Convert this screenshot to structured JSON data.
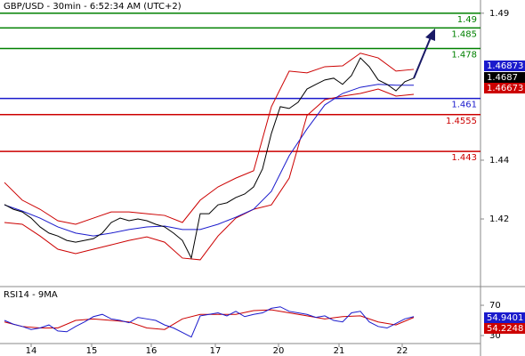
{
  "chart_data": [
    {
      "type": "line",
      "title": "GBP/USD - 30min - 6:52:34 AM (UTC+2)",
      "xlim": [
        0,
        46
      ],
      "ylim": [
        1.3976,
        1.4945
      ],
      "yticks": [
        1.49,
        1.44,
        1.42
      ],
      "series": [
        {
          "color": "#cc0000",
          "x": [
            0,
            2,
            4,
            6,
            8,
            10,
            12,
            14,
            16,
            18,
            20,
            22,
            24,
            26,
            28,
            30,
            32,
            34,
            36,
            38,
            40,
            42,
            44,
            46
          ],
          "values": [
            1.4324,
            1.4264,
            1.4233,
            1.4194,
            1.4182,
            1.4203,
            1.4224,
            1.4224,
            1.4218,
            1.4212,
            1.4188,
            1.4264,
            1.4309,
            1.4339,
            1.4364,
            1.4582,
            1.4703,
            1.4697,
            1.4718,
            1.4721,
            1.4764,
            1.4748,
            1.4703,
            1.4709
          ]
        },
        {
          "color": "#cc0000",
          "x": [
            0,
            2,
            4,
            6,
            8,
            10,
            12,
            14,
            16,
            18,
            20,
            22,
            24,
            26,
            28,
            30,
            32,
            34,
            36,
            38,
            40,
            42,
            44,
            46
          ],
          "values": [
            1.4188,
            1.4182,
            1.4142,
            1.4097,
            1.4082,
            1.4097,
            1.4112,
            1.4127,
            1.4139,
            1.4121,
            1.4067,
            1.4061,
            1.4142,
            1.4203,
            1.4233,
            1.4248,
            1.4339,
            1.4552,
            1.4606,
            1.4618,
            1.4627,
            1.4642,
            1.4618,
            1.4624
          ]
        },
        {
          "color": "#1a1acc",
          "x": [
            0,
            2,
            4,
            6,
            8,
            10,
            12,
            14,
            16,
            18,
            20,
            22,
            24,
            26,
            28,
            30,
            32,
            34,
            36,
            38,
            40,
            42,
            44,
            46
          ],
          "values": [
            1.4248,
            1.4227,
            1.4203,
            1.4173,
            1.4152,
            1.4142,
            1.4152,
            1.4164,
            1.4173,
            1.4176,
            1.4164,
            1.4164,
            1.4182,
            1.4206,
            1.4233,
            1.4294,
            1.4415,
            1.4506,
            1.4588,
            1.4627,
            1.4648,
            1.4658,
            1.4655,
            1.4655
          ]
        },
        {
          "color": "#000000",
          "x": [
            0,
            1,
            2,
            3,
            4,
            5,
            6,
            7,
            8,
            9,
            10,
            11,
            12,
            13,
            14,
            15,
            16,
            17,
            18,
            19,
            20,
            21,
            22,
            23,
            24,
            25,
            26,
            27,
            28,
            29,
            30,
            31,
            32,
            33,
            34,
            35,
            36,
            37,
            38,
            39,
            40,
            41,
            42,
            43,
            44,
            45,
            46
          ],
          "values": [
            1.4249,
            1.4233,
            1.4224,
            1.4203,
            1.4173,
            1.4152,
            1.4142,
            1.4127,
            1.4121,
            1.4127,
            1.4133,
            1.4152,
            1.4188,
            1.4203,
            1.4194,
            1.42,
            1.4194,
            1.4182,
            1.4173,
            1.4152,
            1.4127,
            1.4067,
            1.4218,
            1.4218,
            1.4248,
            1.4255,
            1.4273,
            1.4285,
            1.4309,
            1.437,
            1.4491,
            1.4582,
            1.4576,
            1.4597,
            1.4642,
            1.4658,
            1.4673,
            1.4679,
            1.4658,
            1.4688,
            1.4748,
            1.4718,
            1.4673,
            1.4658,
            1.4636,
            1.4667,
            1.4679
          ]
        }
      ],
      "levels": [
        {
          "value": 1.49,
          "color": "#008000"
        },
        {
          "value": 1.485,
          "color": "#008000"
        },
        {
          "value": 1.478,
          "color": "#008000"
        },
        {
          "value": 1.461,
          "color": "#1a1acc"
        },
        {
          "value": 1.4555,
          "color": "#cc0000"
        },
        {
          "value": 1.443,
          "color": "#cc0000"
        }
      ],
      "price_tags": [
        {
          "value": 1.46873,
          "color": "#1a1acc"
        },
        {
          "value": 1.4687,
          "color": "#000000"
        },
        {
          "value": 1.46673,
          "color": "#cc0000"
        }
      ]
    },
    {
      "type": "line",
      "title": "RSI14 - 9MA",
      "xlim": [
        0,
        46
      ],
      "ylim": [
        20.6,
        91.2
      ],
      "yticks": [
        70,
        30
      ],
      "xticks": [
        {
          "value": 3,
          "label": "14"
        },
        {
          "value": 9.8,
          "label": "15"
        },
        {
          "value": 16.5,
          "label": "16"
        },
        {
          "value": 23.7,
          "label": "17"
        },
        {
          "value": 30.8,
          "label": "20"
        },
        {
          "value": 37.6,
          "label": "21"
        },
        {
          "value": 44.7,
          "label": "22"
        }
      ],
      "series": [
        {
          "color": "#cc0000",
          "x": [
            0,
            2,
            4,
            6,
            8,
            10,
            12,
            14,
            16,
            18,
            20,
            22,
            24,
            26,
            28,
            30,
            32,
            34,
            36,
            38,
            40,
            42,
            44,
            46
          ],
          "values": [
            48,
            42,
            40,
            40,
            50,
            52,
            50,
            48,
            40,
            38,
            52,
            58,
            58,
            58,
            63,
            64,
            60,
            56,
            52,
            55,
            56,
            48,
            44,
            54
          ]
        },
        {
          "color": "#1a1acc",
          "x": [
            0,
            1,
            2,
            3,
            4,
            5,
            6,
            7,
            8,
            9,
            10,
            11,
            12,
            13,
            14,
            15,
            16,
            17,
            18,
            19,
            20,
            21,
            22,
            23,
            24,
            25,
            26,
            27,
            28,
            29,
            30,
            31,
            32,
            33,
            34,
            35,
            36,
            37,
            38,
            39,
            40,
            41,
            42,
            43,
            44,
            45,
            46
          ],
          "values": [
            50,
            45,
            42,
            38,
            40,
            44,
            36,
            35,
            42,
            48,
            55,
            58,
            52,
            50,
            47,
            54,
            52,
            50,
            44,
            40,
            34,
            28,
            56,
            58,
            60,
            56,
            62,
            55,
            58,
            60,
            66,
            68,
            62,
            60,
            58,
            54,
            56,
            50,
            48,
            60,
            62,
            48,
            42,
            40,
            46,
            52,
            55
          ]
        }
      ],
      "price_tags": [
        {
          "value": 54.9401,
          "color": "#1a1acc"
        },
        {
          "value": 54.2248,
          "color": "#cc0000"
        }
      ]
    }
  ]
}
